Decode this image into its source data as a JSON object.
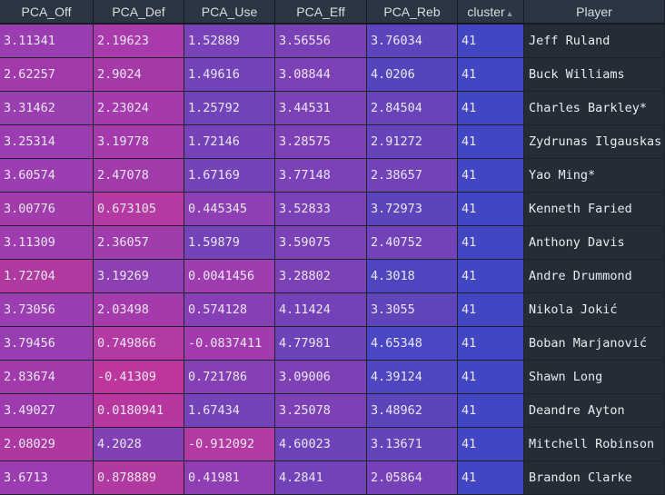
{
  "table": {
    "columns": [
      {
        "label": "PCA_Off",
        "sorted": false
      },
      {
        "label": "PCA_Def",
        "sorted": false
      },
      {
        "label": "PCA_Use",
        "sorted": false
      },
      {
        "label": "PCA_Eff",
        "sorted": false
      },
      {
        "label": "PCA_Reb",
        "sorted": false
      },
      {
        "label": "cluster",
        "sorted": true
      },
      {
        "label": "Player",
        "sorted": false
      }
    ],
    "sort_icon": "sort-up-icon",
    "rows": [
      {
        "cells": [
          "3.11341",
          "2.19623",
          "1.52889",
          "3.56556",
          "3.76034",
          "41",
          "Jeff Ruland"
        ],
        "colors": [
          "#9a3db0",
          "#a83aac",
          "#7842b8",
          "#7a41b6",
          "#5c45bc",
          "#4346c2"
        ]
      },
      {
        "cells": [
          "2.62257",
          "2.9024",
          "1.49616",
          "3.08844",
          "4.0206",
          "41",
          "Buck Williams"
        ],
        "colors": [
          "#a33aab",
          "#a539a8",
          "#7343b8",
          "#7c41b5",
          "#5445bd",
          "#4346c2"
        ]
      },
      {
        "cells": [
          "3.31462",
          "2.23024",
          "1.25792",
          "3.44531",
          "2.84504",
          "41",
          "Charles Barkley*"
        ],
        "colors": [
          "#9a3eb0",
          "#a43aab",
          "#7043b8",
          "#7b42b6",
          "#6843b9",
          "#4346c2"
        ]
      },
      {
        "cells": [
          "3.25314",
          "3.19778",
          "1.72146",
          "3.28575",
          "2.91272",
          "41",
          "Zydrunas Ilgauskas"
        ],
        "colors": [
          "#9b3db0",
          "#a43aab",
          "#7642b8",
          "#7d41b5",
          "#6743b9",
          "#4346c2"
        ]
      },
      {
        "cells": [
          "3.60574",
          "2.47078",
          "1.67169",
          "3.77148",
          "2.38657",
          "41",
          "Yao Ming*"
        ],
        "colors": [
          "#9c3db1",
          "#a23baa",
          "#7443b8",
          "#7b41b6",
          "#7242b8",
          "#4346c2"
        ]
      },
      {
        "cells": [
          "3.00776",
          "0.673105",
          "0.445345",
          "3.52833",
          "3.72973",
          "41",
          "Kenneth Faried"
        ],
        "colors": [
          "#a23bab",
          "#b43aa2",
          "#8e3fb4",
          "#7a42b6",
          "#5c45bc",
          "#4346c2"
        ]
      },
      {
        "cells": [
          "3.11309",
          "2.36057",
          "1.59879",
          "3.59075",
          "2.40752",
          "41",
          "Anthony Davis"
        ],
        "colors": [
          "#9f3cae",
          "#a03cac",
          "#7343b8",
          "#7a42b6",
          "#7142b8",
          "#4346c2"
        ]
      },
      {
        "cells": [
          "1.72704",
          "3.19269",
          "0.0041456",
          "3.28802",
          "4.3018",
          "41",
          "Andre Drummond"
        ],
        "colors": [
          "#b0399f",
          "#8e3fb2",
          "#9f3caf",
          "#7c41b5",
          "#4f45bf",
          "#4346c2"
        ]
      },
      {
        "cells": [
          "3.73056",
          "2.03498",
          "0.574128",
          "4.11424",
          "3.3055",
          "41",
          "Nikola Jokić"
        ],
        "colors": [
          "#9b3eb1",
          "#a43aab",
          "#873fb5",
          "#7342b8",
          "#6044bb",
          "#4346c2"
        ]
      },
      {
        "cells": [
          "3.79456",
          "0.749866",
          "-0.0837411",
          "4.77981",
          "4.65348",
          "41",
          "Boban Marjanović"
        ],
        "colors": [
          "#983eb1",
          "#b33aa3",
          "#a23cae",
          "#6d43b9",
          "#4947c2",
          "#4346c2"
        ]
      },
      {
        "cells": [
          "2.83674",
          "-0.41309",
          "0.721786",
          "3.09006",
          "4.39124",
          "41",
          "Shawn Long"
        ],
        "colors": [
          "#a33aab",
          "#bd369c",
          "#8640b5",
          "#7e41b5",
          "#4e45c0",
          "#4346c2"
        ]
      },
      {
        "cells": [
          "3.49027",
          "0.0180941",
          "1.67434",
          "3.25078",
          "3.48962",
          "41",
          "Deandre Ayton"
        ],
        "colors": [
          "#9e3caf",
          "#b8379f",
          "#7443b8",
          "#7d41b5",
          "#5e44bb",
          "#4346c2"
        ]
      },
      {
        "cells": [
          "2.08029",
          "4.2028",
          "-0.912092",
          "4.60023",
          "3.13671",
          "41",
          "Mitchell Robinson"
        ],
        "colors": [
          "#ad389f",
          "#8141b5",
          "#b33aa3",
          "#6c43b9",
          "#6543ba",
          "#4346c2"
        ]
      },
      {
        "cells": [
          "3.6713",
          "0.878889",
          "0.41981",
          "4.2841",
          "2.05864",
          "41",
          "Brandon Clarke"
        ],
        "colors": [
          "#9b3db1",
          "#b1399f",
          "#8f3fb3",
          "#7142b8",
          "#7641b6",
          "#4346c2"
        ]
      }
    ]
  }
}
